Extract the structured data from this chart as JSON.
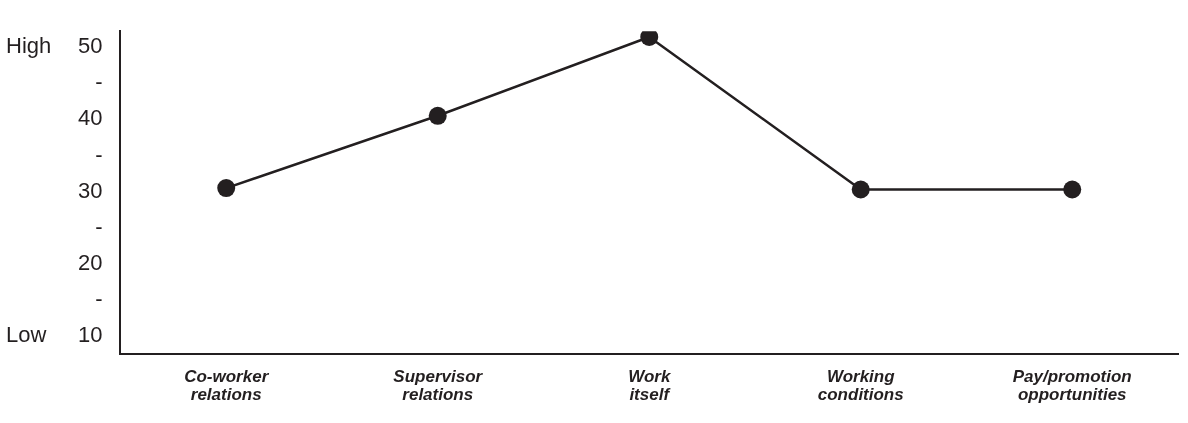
{
  "chart_data": {
    "type": "line",
    "categories": [
      "Co-worker relations",
      "Supervisor relations",
      "Work itself",
      "Working conditions",
      "Pay/promotion opportunities"
    ],
    "series": [
      {
        "color": "#231f20",
        "values": [
          30.5,
          40.5,
          51.4,
          30.3,
          30.3
        ]
      }
    ],
    "ylim": [
      7.6,
      52.2
    ],
    "yticks": [
      10,
      {
        "value": 15,
        "label": "-"
      },
      20,
      {
        "value": 25,
        "label": "-"
      },
      30,
      {
        "value": 35,
        "label": "-"
      },
      40,
      {
        "value": 45,
        "label": "-"
      },
      50
    ],
    "annotations": [
      "High",
      "Low"
    ],
    "grid": false,
    "legend": false,
    "marker": "circle",
    "line_style": "solid"
  }
}
